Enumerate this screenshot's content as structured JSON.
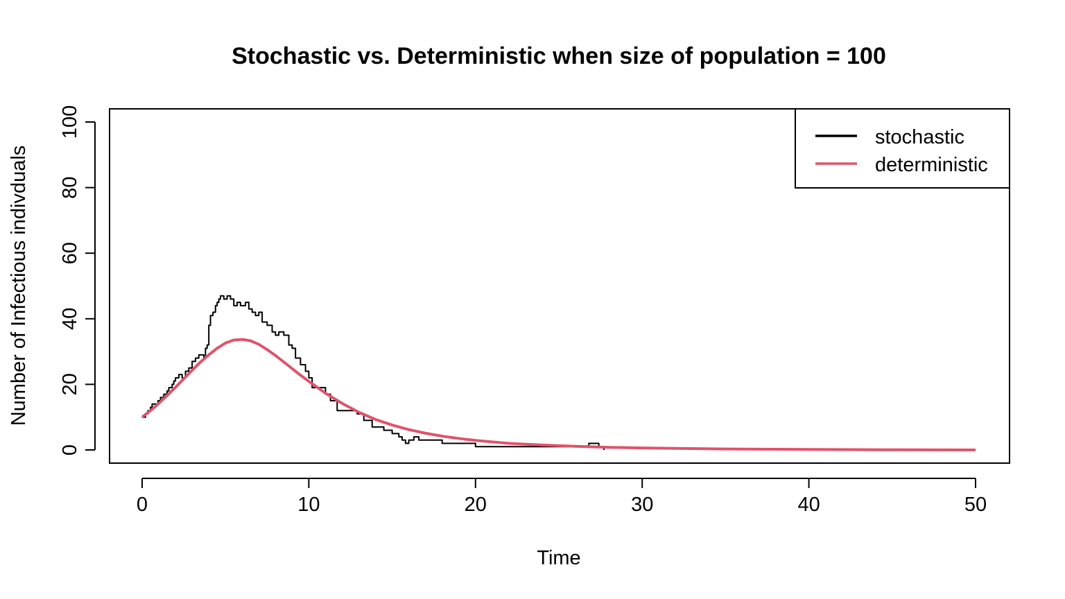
{
  "chart_data": {
    "type": "line",
    "title": "Stochastic vs. Deterministic when size of population = 100",
    "xlabel": "Time",
    "ylabel": "Number of Infectious indivduals",
    "xlim": [
      0,
      50
    ],
    "ylim": [
      0,
      100
    ],
    "x_ticks": [
      0,
      10,
      20,
      30,
      40,
      50
    ],
    "y_ticks": [
      0,
      20,
      40,
      60,
      80,
      100
    ],
    "grid": false,
    "legend_position": "top-right",
    "series": [
      {
        "name": "stochastic",
        "color": "#000000",
        "style": "step",
        "points": [
          [
            0,
            10
          ],
          [
            0.2,
            11
          ],
          [
            0.35,
            12
          ],
          [
            0.5,
            13
          ],
          [
            0.6,
            14
          ],
          [
            0.8,
            14
          ],
          [
            0.95,
            15
          ],
          [
            1.1,
            16
          ],
          [
            1.3,
            17
          ],
          [
            1.5,
            18
          ],
          [
            1.6,
            19
          ],
          [
            1.8,
            20
          ],
          [
            1.9,
            21
          ],
          [
            2.0,
            22
          ],
          [
            2.2,
            23
          ],
          [
            2.4,
            22
          ],
          [
            2.6,
            24
          ],
          [
            2.8,
            25
          ],
          [
            3.0,
            27
          ],
          [
            3.2,
            28
          ],
          [
            3.4,
            29
          ],
          [
            3.6,
            29
          ],
          [
            3.7,
            28
          ],
          [
            3.8,
            31
          ],
          [
            3.9,
            32
          ],
          [
            4.0,
            38
          ],
          [
            4.1,
            41
          ],
          [
            4.25,
            42
          ],
          [
            4.4,
            44
          ],
          [
            4.5,
            45
          ],
          [
            4.6,
            46
          ],
          [
            4.7,
            47
          ],
          [
            4.9,
            46
          ],
          [
            5.1,
            47
          ],
          [
            5.3,
            46
          ],
          [
            5.5,
            44
          ],
          [
            5.7,
            45
          ],
          [
            5.9,
            44
          ],
          [
            6.2,
            45
          ],
          [
            6.4,
            43
          ],
          [
            6.6,
            42
          ],
          [
            6.8,
            41
          ],
          [
            7.0,
            42
          ],
          [
            7.2,
            39
          ],
          [
            7.5,
            38
          ],
          [
            7.8,
            36
          ],
          [
            8.0,
            35
          ],
          [
            8.2,
            36
          ],
          [
            8.5,
            35
          ],
          [
            8.8,
            32
          ],
          [
            9.0,
            31
          ],
          [
            9.2,
            28
          ],
          [
            9.5,
            26
          ],
          [
            9.8,
            24
          ],
          [
            10.0,
            22
          ],
          [
            10.2,
            19
          ],
          [
            10.7,
            19
          ],
          [
            11.0,
            17
          ],
          [
            11.3,
            15
          ],
          [
            11.7,
            12
          ],
          [
            12.2,
            12
          ],
          [
            12.9,
            11
          ],
          [
            13.3,
            9
          ],
          [
            13.8,
            7
          ],
          [
            14.5,
            6
          ],
          [
            15.0,
            5
          ],
          [
            15.4,
            4
          ],
          [
            15.6,
            3
          ],
          [
            15.8,
            2
          ],
          [
            16.0,
            3
          ],
          [
            16.3,
            4
          ],
          [
            16.6,
            3
          ],
          [
            17.0,
            3
          ],
          [
            18.0,
            2
          ],
          [
            19.5,
            2
          ],
          [
            20.0,
            1
          ],
          [
            26.2,
            1
          ],
          [
            26.8,
            2
          ],
          [
            27.4,
            1
          ],
          [
            27.7,
            0
          ]
        ]
      },
      {
        "name": "deterministic",
        "color": "#DF536B",
        "style": "line",
        "points": [
          [
            0,
            10
          ],
          [
            0.5,
            12
          ],
          [
            1,
            14.2
          ],
          [
            1.5,
            16.6
          ],
          [
            2,
            19.1
          ],
          [
            2.5,
            21.7
          ],
          [
            3,
            24.3
          ],
          [
            3.5,
            26.8
          ],
          [
            4,
            29
          ],
          [
            4.5,
            31
          ],
          [
            5,
            32.6
          ],
          [
            5.5,
            33.5
          ],
          [
            6,
            33.7
          ],
          [
            6.5,
            33.3
          ],
          [
            7,
            32.2
          ],
          [
            7.5,
            30.6
          ],
          [
            8,
            28.8
          ],
          [
            8.5,
            26.8
          ],
          [
            9,
            24.8
          ],
          [
            9.5,
            22.8
          ],
          [
            10,
            20.9
          ],
          [
            11,
            17.3
          ],
          [
            12,
            14.2
          ],
          [
            13,
            11.5
          ],
          [
            14,
            9.3
          ],
          [
            15,
            7.6
          ],
          [
            16,
            6.2
          ],
          [
            17,
            5.1
          ],
          [
            18,
            4.2
          ],
          [
            19,
            3.5
          ],
          [
            20,
            2.9
          ],
          [
            22,
            2
          ],
          [
            24,
            1.5
          ],
          [
            26,
            1.1
          ],
          [
            28,
            0.8
          ],
          [
            30,
            0.6
          ],
          [
            35,
            0.3
          ],
          [
            40,
            0.15
          ],
          [
            45,
            0.05
          ],
          [
            50,
            0
          ]
        ]
      }
    ]
  }
}
